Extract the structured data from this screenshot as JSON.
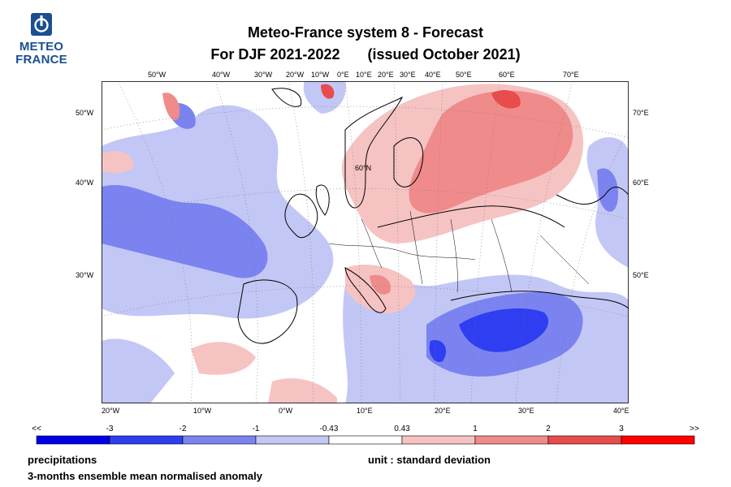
{
  "logo": {
    "line1": "METEO",
    "line2": "FRANCE"
  },
  "title": {
    "line1": "Meteo-France system 8  -  Forecast",
    "line2a": "For DJF 2021-2022",
    "line2b": "(issued October 2021)"
  },
  "top_labels": [
    "50°W",
    "40°W",
    "30°W",
    "20°W",
    "10°W",
    "0°E",
    "10°E",
    "20°E",
    "30°E",
    "40°E",
    "50°E",
    "60°E",
    "70°E"
  ],
  "left_labels": [
    "50°W",
    "40°W",
    "30°W"
  ],
  "right_labels": [
    "70°E",
    "60°E",
    "50°E"
  ],
  "bottom_labels": [
    "20°W",
    "10°W",
    "0°W",
    "10°E",
    "20°E",
    "30°E",
    "40°E"
  ],
  "inner_label": "60°N",
  "colorbar": {
    "ticks": [
      "<<",
      "-3",
      "-2",
      "-1",
      "-0.43",
      "0.43",
      "1",
      "2",
      "3",
      ">>"
    ],
    "colors": [
      "#0000e6",
      "#2e3ef0",
      "#7b83f0",
      "#c3c7f5",
      "#ffffff",
      "#f6c3c3",
      "#f08b8b",
      "#e84c4c",
      "#ff0000"
    ]
  },
  "footer": {
    "variable": "precipitations",
    "unit": "unit : standard deviation",
    "description": "3-months ensemble mean normalised anomaly"
  }
}
